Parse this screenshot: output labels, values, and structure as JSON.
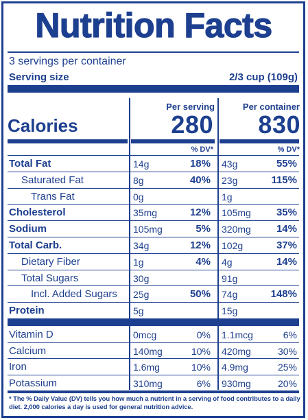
{
  "title": "Nutrition Facts",
  "servings_per_container": "3 servings per container",
  "serving_size_label": "Serving size",
  "serving_size_value": "2/3 cup (109g)",
  "columns": {
    "per_serving": "Per serving",
    "per_container": "Per container"
  },
  "calories": {
    "label": "Calories",
    "per_serving": "280",
    "per_container": "830"
  },
  "dv_header": "% DV*",
  "nutrients": [
    {
      "name": "Total Fat",
      "bold": true,
      "indent": 0,
      "serving_amt": "14g",
      "serving_dv": "18%",
      "container_amt": "43g",
      "container_dv": "55%"
    },
    {
      "name": "Saturated Fat",
      "bold": false,
      "indent": 1,
      "serving_amt": "8g",
      "serving_dv": "40%",
      "container_amt": "23g",
      "container_dv": "115%"
    },
    {
      "name": "Trans Fat",
      "bold": false,
      "indent": 2,
      "serving_amt": "0g",
      "serving_dv": "",
      "container_amt": "1g",
      "container_dv": ""
    },
    {
      "name": "Cholesterol",
      "bold": true,
      "indent": 0,
      "serving_amt": "35mg",
      "serving_dv": "12%",
      "container_amt": "105mg",
      "container_dv": "35%"
    },
    {
      "name": "Sodium",
      "bold": true,
      "indent": 0,
      "serving_amt": "105mg",
      "serving_dv": "5%",
      "container_amt": "320mg",
      "container_dv": "14%"
    },
    {
      "name": "Total Carb.",
      "bold": true,
      "indent": 0,
      "serving_amt": "34g",
      "serving_dv": "12%",
      "container_amt": "102g",
      "container_dv": "37%"
    },
    {
      "name": "Dietary Fiber",
      "bold": false,
      "indent": 1,
      "serving_amt": "1g",
      "serving_dv": "4%",
      "container_amt": "4g",
      "container_dv": "14%"
    },
    {
      "name": "Total Sugars",
      "bold": false,
      "indent": 1,
      "serving_amt": "30g",
      "serving_dv": "",
      "container_amt": "91g",
      "container_dv": ""
    },
    {
      "name": "Incl. Added Sugars",
      "bold": false,
      "indent": 2,
      "serving_amt": "25g",
      "serving_dv": "50%",
      "container_amt": "74g",
      "container_dv": "148%"
    },
    {
      "name": "Protein",
      "bold": true,
      "indent": 0,
      "serving_amt": "5g",
      "serving_dv": "",
      "container_amt": "15g",
      "container_dv": ""
    }
  ],
  "vitamins": [
    {
      "name": "Vitamin D",
      "serving_amt": "0mcg",
      "serving_dv": "0%",
      "container_amt": "1.1mcg",
      "container_dv": "6%"
    },
    {
      "name": "Calcium",
      "serving_amt": "140mg",
      "serving_dv": "10%",
      "container_amt": "420mg",
      "container_dv": "30%"
    },
    {
      "name": "Iron",
      "serving_amt": "1.6mg",
      "serving_dv": "10%",
      "container_amt": "4.9mg",
      "container_dv": "25%"
    },
    {
      "name": "Potassium",
      "serving_amt": "310mg",
      "serving_dv": "6%",
      "container_amt": "930mg",
      "container_dv": "20%"
    }
  ],
  "footnote": "* The % Daily Value (DV) tells you how much a nutrient in a serving of food contributes to a daily diet. 2,000 calories a day is used for general nutrition advice.",
  "colors": {
    "ink": "#1d3f8f",
    "background": "#ffffff"
  }
}
